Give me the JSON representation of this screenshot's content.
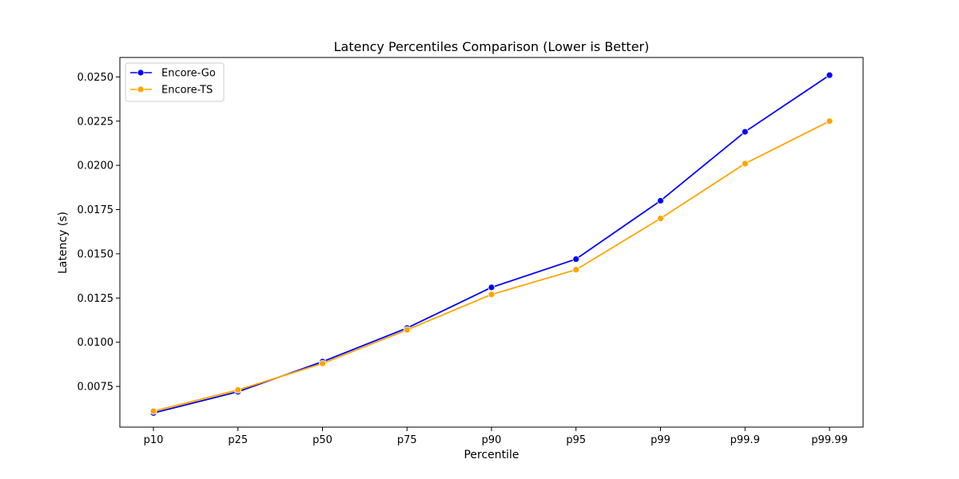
{
  "chart_data": {
    "type": "line",
    "title": "Latency Percentiles Comparison (Lower is Better)",
    "xlabel": "Percentile",
    "ylabel": "Latency (s)",
    "categories": [
      "p10",
      "p25",
      "p50",
      "p75",
      "p90",
      "p95",
      "p99",
      "p99.9",
      "p99.99"
    ],
    "y_ticks": [
      "0.0075",
      "0.0100",
      "0.0125",
      "0.0150",
      "0.0175",
      "0.0200",
      "0.0225",
      "0.0250"
    ],
    "ylim": [
      0.0052,
      0.0261
    ],
    "grid": false,
    "legend_position": "top-left",
    "series": [
      {
        "name": "Encore-Go",
        "color": "#0000ff",
        "values": [
          0.006,
          0.0072,
          0.0089,
          0.0108,
          0.0131,
          0.0147,
          0.018,
          0.0219,
          0.0251
        ]
      },
      {
        "name": "Encore-TS",
        "color": "#ffa500",
        "values": [
          0.0061,
          0.0073,
          0.0088,
          0.0107,
          0.0127,
          0.0141,
          0.017,
          0.0201,
          0.0225
        ]
      }
    ]
  }
}
